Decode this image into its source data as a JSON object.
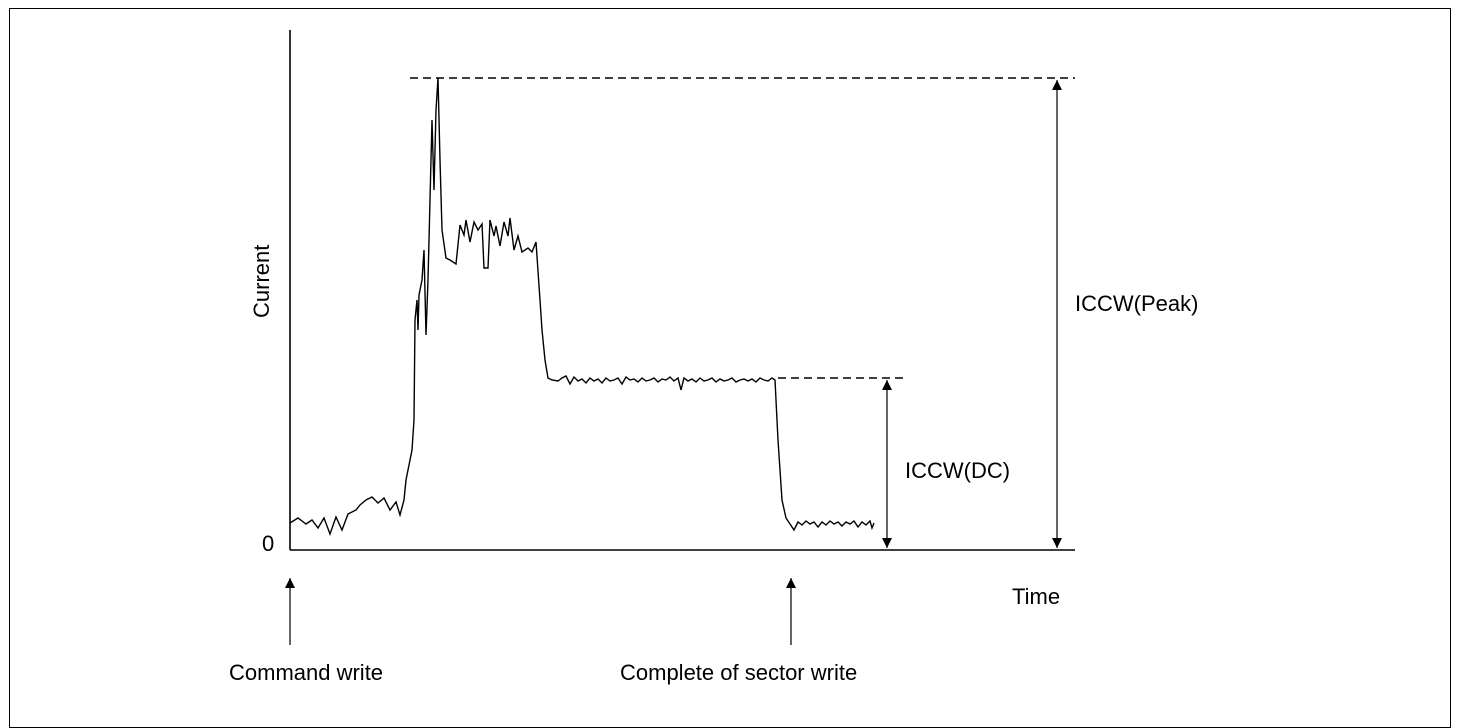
{
  "labels": {
    "y_axis": "Current",
    "x_axis": "Time",
    "zero": "0",
    "peak": "ICCW(Peak)",
    "dc": "ICCW(DC)",
    "start_event": "Command write",
    "end_event": "Complete of sector write"
  },
  "colors": {
    "line": "#000000",
    "background": "#ffffff"
  }
}
